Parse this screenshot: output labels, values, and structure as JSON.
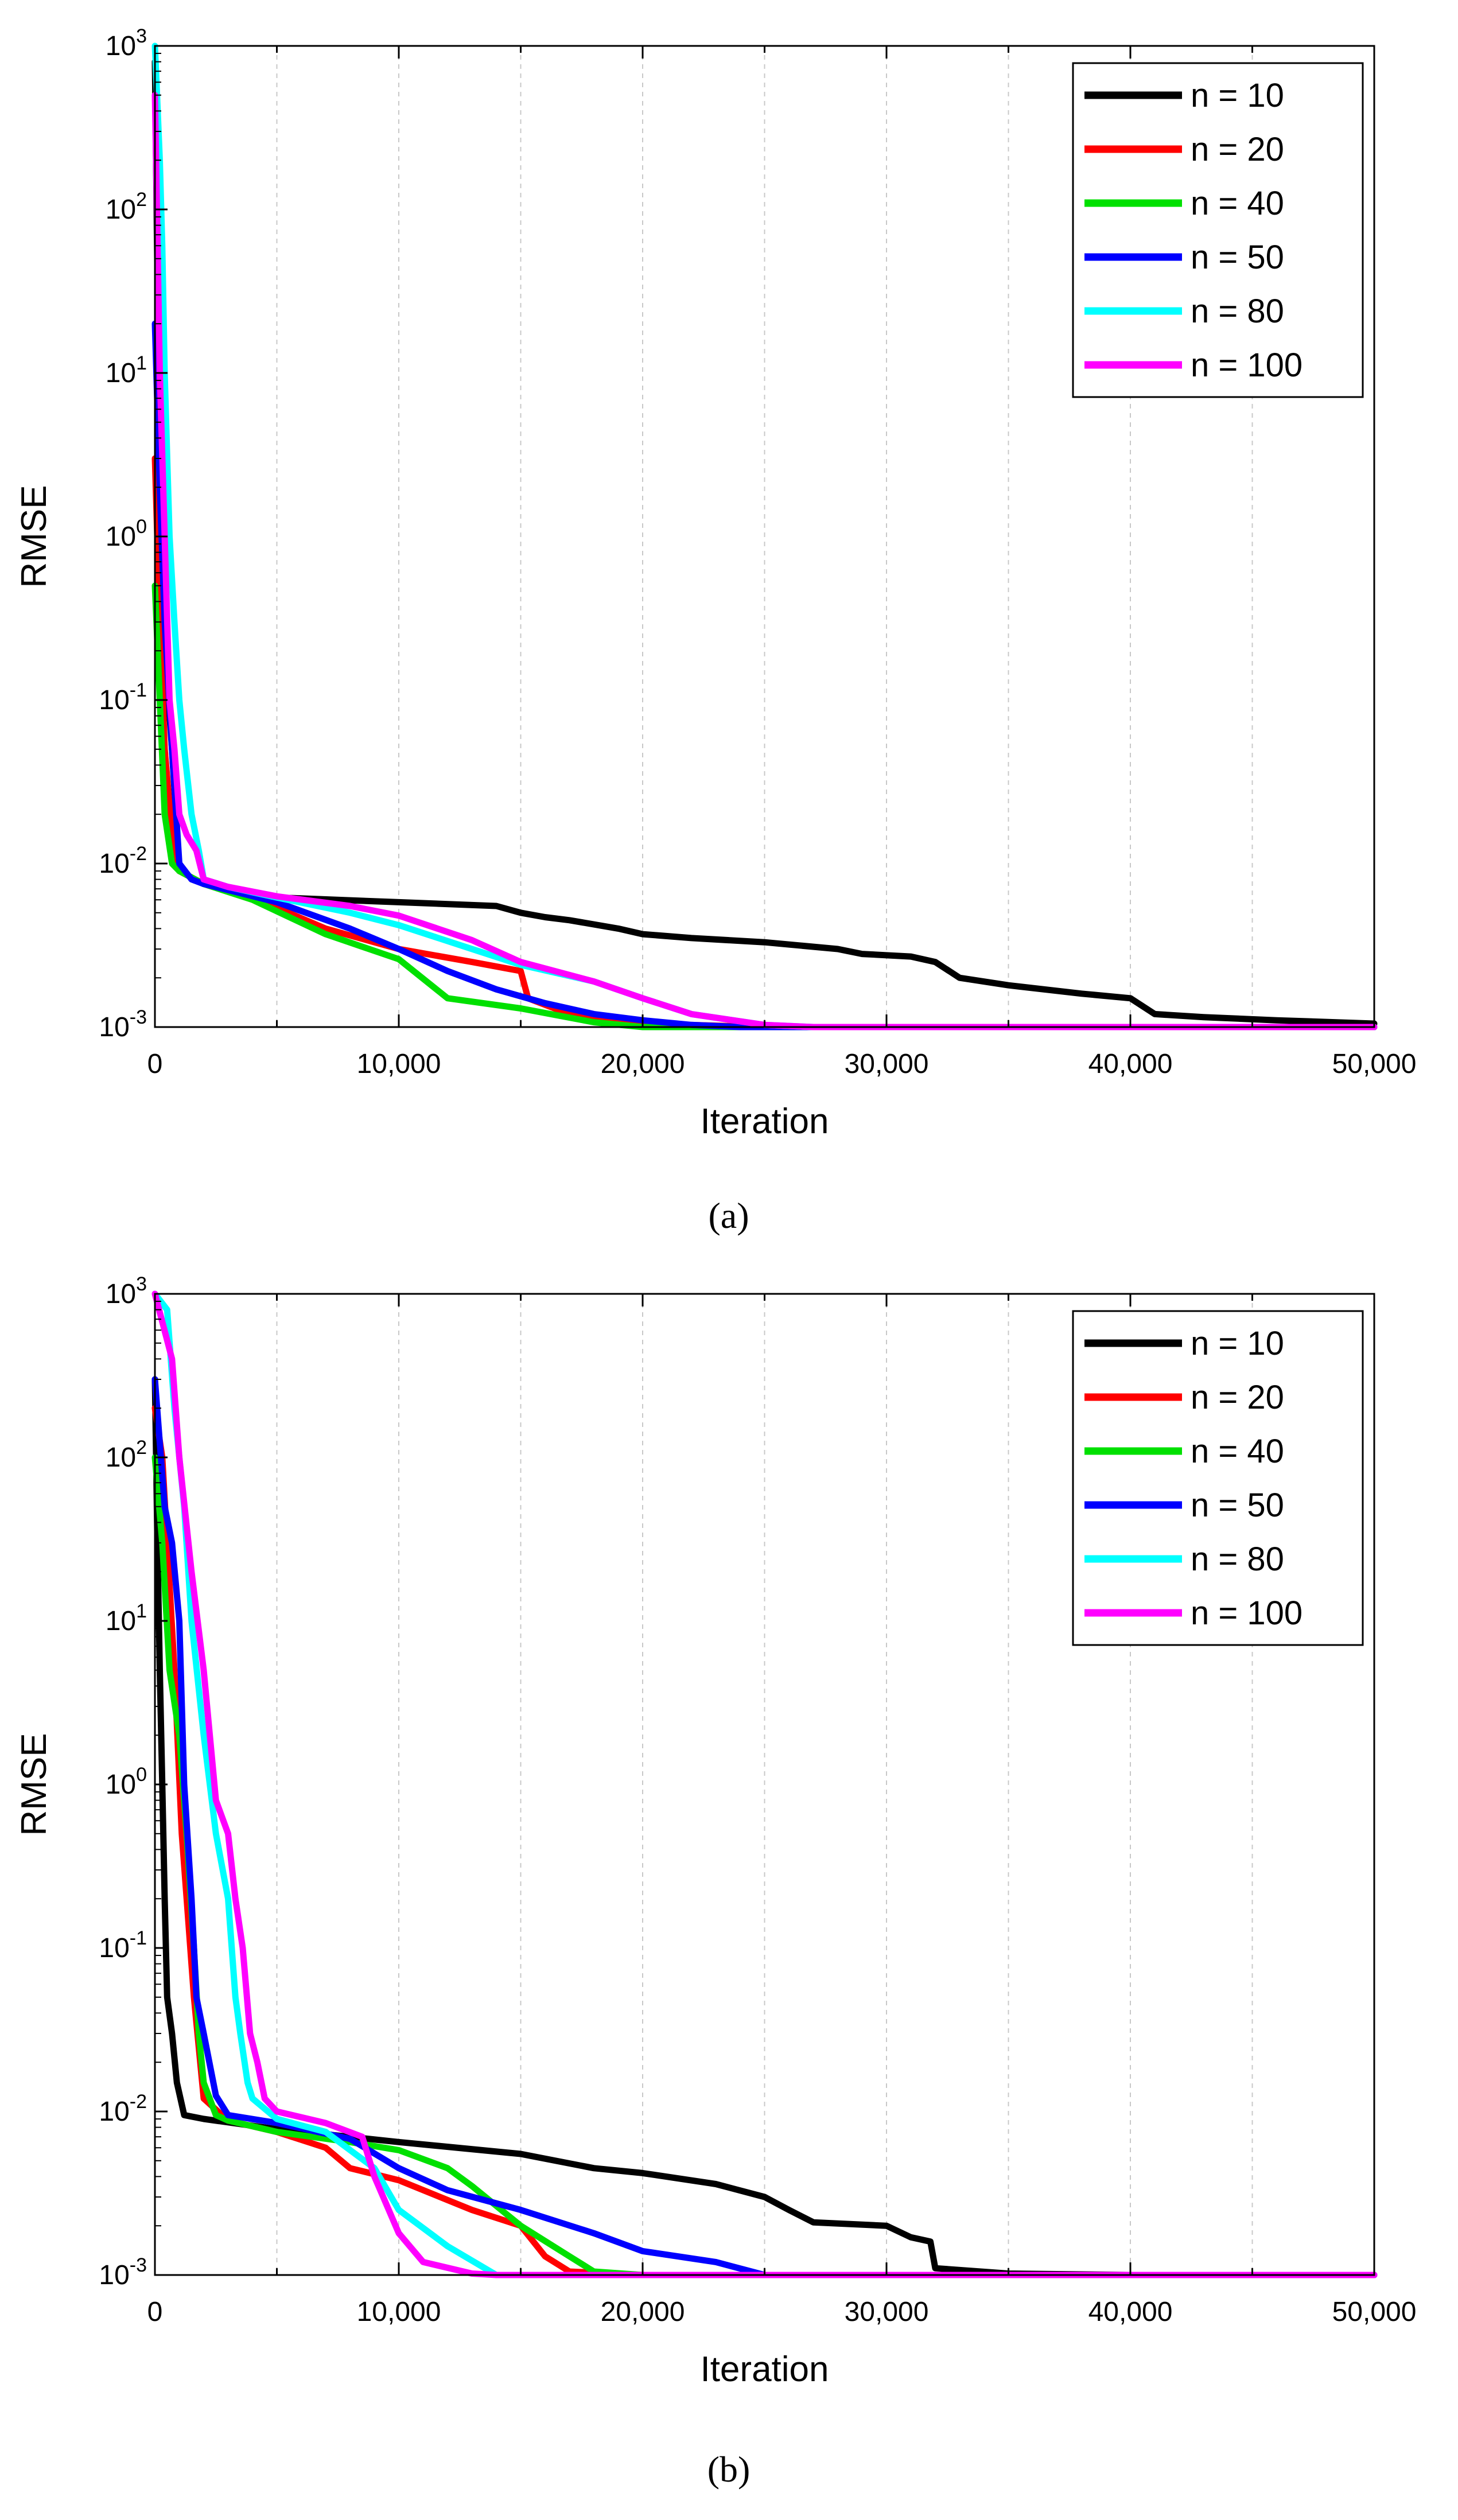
{
  "figure": {
    "captions": [
      "(a)",
      "(b)"
    ]
  },
  "chart_data": [
    {
      "type": "line",
      "panel": "a",
      "title": "",
      "xlabel": "Iteration",
      "ylabel": "RMSE",
      "yscale": "log",
      "xlim": [
        0,
        50000
      ],
      "ylim": [
        0.001,
        1000
      ],
      "xticks": [
        0,
        10000,
        20000,
        30000,
        40000,
        50000
      ],
      "xtick_labels": [
        "0",
        "10,000",
        "20,000",
        "30,000",
        "40,000",
        "50,000"
      ],
      "yticks": [
        0.001,
        0.01,
        0.1,
        1,
        10,
        100,
        1000
      ],
      "ytick_base": "10",
      "ytick_exponents": [
        "-3",
        "-2",
        "-1",
        "0",
        "1",
        "2",
        "3"
      ],
      "grid": "vertical dashed at 5,000 intervals",
      "legend_position": "top-right",
      "series": [
        {
          "name": "n = 10",
          "color": "#000000",
          "x": [
            0,
            200,
            400,
            700,
            1000,
            2000,
            5000,
            10000,
            14000,
            15000,
            16000,
            17000,
            19000,
            20000,
            22000,
            25000,
            28000,
            29000,
            31000,
            32000,
            33000,
            35000,
            38000,
            40000,
            41000,
            43000,
            46000,
            50000
          ],
          "y": [
            800,
            2,
            0.2,
            0.05,
            0.009,
            0.0075,
            0.0062,
            0.0058,
            0.0055,
            0.005,
            0.0047,
            0.0045,
            0.004,
            0.0037,
            0.0035,
            0.0033,
            0.003,
            0.0028,
            0.0027,
            0.0025,
            0.002,
            0.0018,
            0.0016,
            0.0015,
            0.0012,
            0.00115,
            0.0011,
            0.00105
          ]
        },
        {
          "name": "n = 20",
          "color": "#ff0000",
          "x": [
            0,
            200,
            400,
            700,
            1000,
            2000,
            4000,
            7000,
            10000,
            13000,
            15000,
            15300,
            17000,
            20000,
            25000,
            50000
          ],
          "y": [
            3,
            0.3,
            0.05,
            0.015,
            0.009,
            0.0075,
            0.0062,
            0.004,
            0.003,
            0.0025,
            0.0022,
            0.0015,
            0.0012,
            0.00105,
            0.001,
            0.001
          ]
        },
        {
          "name": "n = 40",
          "color": "#00e000",
          "x": [
            0,
            200,
            400,
            700,
            1000,
            2000,
            4000,
            7000,
            10000,
            12000,
            15000,
            18000,
            20000,
            22000,
            50000
          ],
          "y": [
            0.5,
            0.1,
            0.02,
            0.01,
            0.009,
            0.0075,
            0.006,
            0.0037,
            0.0026,
            0.0015,
            0.0013,
            0.00107,
            0.001,
            0.001,
            0.001
          ]
        },
        {
          "name": "n = 50",
          "color": "#0000ff",
          "x": [
            0,
            200,
            400,
            700,
            1000,
            1500,
            2000,
            5000,
            8000,
            10000,
            12000,
            14000,
            16000,
            18000,
            20000,
            22000,
            24000,
            50000
          ],
          "y": [
            20,
            2,
            0.3,
            0.05,
            0.01,
            0.008,
            0.0075,
            0.0058,
            0.004,
            0.003,
            0.0022,
            0.0017,
            0.0014,
            0.0012,
            0.0011,
            0.00103,
            0.001,
            0.001
          ]
        },
        {
          "name": "n = 80",
          "color": "#00ffff",
          "x": [
            0,
            200,
            300,
            400,
            600,
            800,
            1000,
            1200,
            1500,
            1800,
            2000,
            3000,
            5000,
            8000,
            10000,
            13000,
            15000,
            18000,
            20000,
            22000,
            25000,
            27000,
            50000
          ],
          "y": [
            1000,
            200,
            60,
            10,
            1,
            0.3,
            0.1,
            0.05,
            0.02,
            0.012,
            0.008,
            0.0072,
            0.0062,
            0.005,
            0.0042,
            0.003,
            0.0024,
            0.0019,
            0.0015,
            0.0012,
            0.00103,
            0.001,
            0.001
          ]
        },
        {
          "name": "n = 100",
          "color": "#ff00ff",
          "x": [
            0,
            200,
            400,
            600,
            800,
            1000,
            1300,
            1700,
            2000,
            3000,
            5000,
            8000,
            10000,
            13000,
            15000,
            18000,
            20000,
            22000,
            25000,
            27000,
            50000
          ],
          "y": [
            500,
            10,
            1,
            0.1,
            0.05,
            0.02,
            0.015,
            0.012,
            0.008,
            0.0072,
            0.0063,
            0.0055,
            0.0048,
            0.0034,
            0.0025,
            0.0019,
            0.0015,
            0.0012,
            0.00103,
            0.001,
            0.001
          ]
        }
      ]
    },
    {
      "type": "line",
      "panel": "b",
      "title": "",
      "xlabel": "Iteration",
      "ylabel": "RMSE",
      "yscale": "log",
      "xlim": [
        0,
        50000
      ],
      "ylim": [
        0.001,
        1000
      ],
      "xticks": [
        0,
        10000,
        20000,
        30000,
        40000,
        50000
      ],
      "xtick_labels": [
        "0",
        "10,000",
        "20,000",
        "30,000",
        "40,000",
        "50,000"
      ],
      "yticks": [
        0.001,
        0.01,
        0.1,
        1,
        10,
        100,
        1000
      ],
      "ytick_base": "10",
      "ytick_exponents": [
        "-3",
        "-2",
        "-1",
        "0",
        "1",
        "2",
        "3"
      ],
      "grid": "vertical dashed at 5,000 intervals",
      "legend_position": "top-right",
      "series": [
        {
          "name": "n = 10",
          "color": "#000000",
          "x": [
            0,
            100,
            200,
            300,
            400,
            500,
            700,
            900,
            1200,
            2000,
            5000,
            10000,
            15000,
            18000,
            20000,
            23000,
            25000,
            26000,
            27000,
            30000,
            31000,
            31800,
            32000,
            35000,
            40000,
            50000
          ],
          "y": [
            300,
            30,
            5,
            1,
            0.2,
            0.05,
            0.03,
            0.015,
            0.0095,
            0.009,
            0.0078,
            0.0065,
            0.0055,
            0.0045,
            0.0042,
            0.0036,
            0.003,
            0.0025,
            0.0021,
            0.002,
            0.0017,
            0.0016,
            0.0011,
            0.00102,
            0.001,
            0.001
          ]
        },
        {
          "name": "n = 20",
          "color": "#ff0000",
          "x": [
            0,
            300,
            500,
            800,
            1100,
            1300,
            1600,
            2000,
            3000,
            5000,
            7000,
            8000,
            10000,
            13000,
            15000,
            16000,
            17000,
            20000,
            50000
          ],
          "y": [
            200,
            100,
            30,
            5,
            0.5,
            0.2,
            0.05,
            0.012,
            0.0088,
            0.0075,
            0.006,
            0.0045,
            0.0038,
            0.0025,
            0.002,
            0.0013,
            0.00105,
            0.001,
            0.001
          ]
        },
        {
          "name": "n = 40",
          "color": "#00e000",
          "x": [
            0,
            300,
            600,
            1000,
            1300,
            1600,
            1800,
            2000,
            2500,
            3000,
            5000,
            8000,
            10000,
            12000,
            13000,
            15000,
            17000,
            18000,
            20000,
            50000
          ],
          "y": [
            100,
            30,
            5,
            2,
            0.5,
            0.1,
            0.03,
            0.015,
            0.0095,
            0.0088,
            0.0075,
            0.0065,
            0.0058,
            0.0045,
            0.0035,
            0.002,
            0.0013,
            0.00105,
            0.001,
            0.001
          ]
        },
        {
          "name": "n = 50",
          "color": "#0000ff",
          "x": [
            0,
            400,
            700,
            1000,
            1200,
            1500,
            1700,
            2000,
            2500,
            3000,
            5000,
            8000,
            10000,
            12000,
            15000,
            18000,
            20000,
            23000,
            25000,
            50000
          ],
          "y": [
            300,
            50,
            30,
            10,
            1,
            0.2,
            0.05,
            0.03,
            0.0125,
            0.0095,
            0.0085,
            0.0068,
            0.0045,
            0.0033,
            0.0025,
            0.0018,
            0.0014,
            0.0012,
            0.001,
            0.001
          ]
        },
        {
          "name": "n = 80",
          "color": "#00ffff",
          "x": [
            0,
            500,
            800,
            1200,
            1500,
            2000,
            2500,
            3000,
            3300,
            3500,
            3800,
            4000,
            5000,
            7000,
            9000,
            10000,
            12000,
            14000,
            15000,
            50000
          ],
          "y": [
            1000,
            800,
            200,
            50,
            10,
            2,
            0.5,
            0.2,
            0.05,
            0.03,
            0.015,
            0.012,
            0.009,
            0.0075,
            0.0045,
            0.0025,
            0.0015,
            0.001,
            0.001,
            0.001
          ]
        },
        {
          "name": "n = 100",
          "color": "#ff00ff",
          "x": [
            0,
            700,
            1000,
            1500,
            2000,
            2500,
            3000,
            3300,
            3600,
            3900,
            4200,
            4500,
            5000,
            7000,
            8500,
            9000,
            10000,
            11000,
            13000,
            14000,
            50000
          ],
          "y": [
            1000,
            400,
            100,
            20,
            5,
            0.8,
            0.5,
            0.2,
            0.1,
            0.03,
            0.02,
            0.012,
            0.01,
            0.0085,
            0.007,
            0.004,
            0.0018,
            0.0012,
            0.00102,
            0.001,
            0.001
          ]
        }
      ]
    }
  ]
}
